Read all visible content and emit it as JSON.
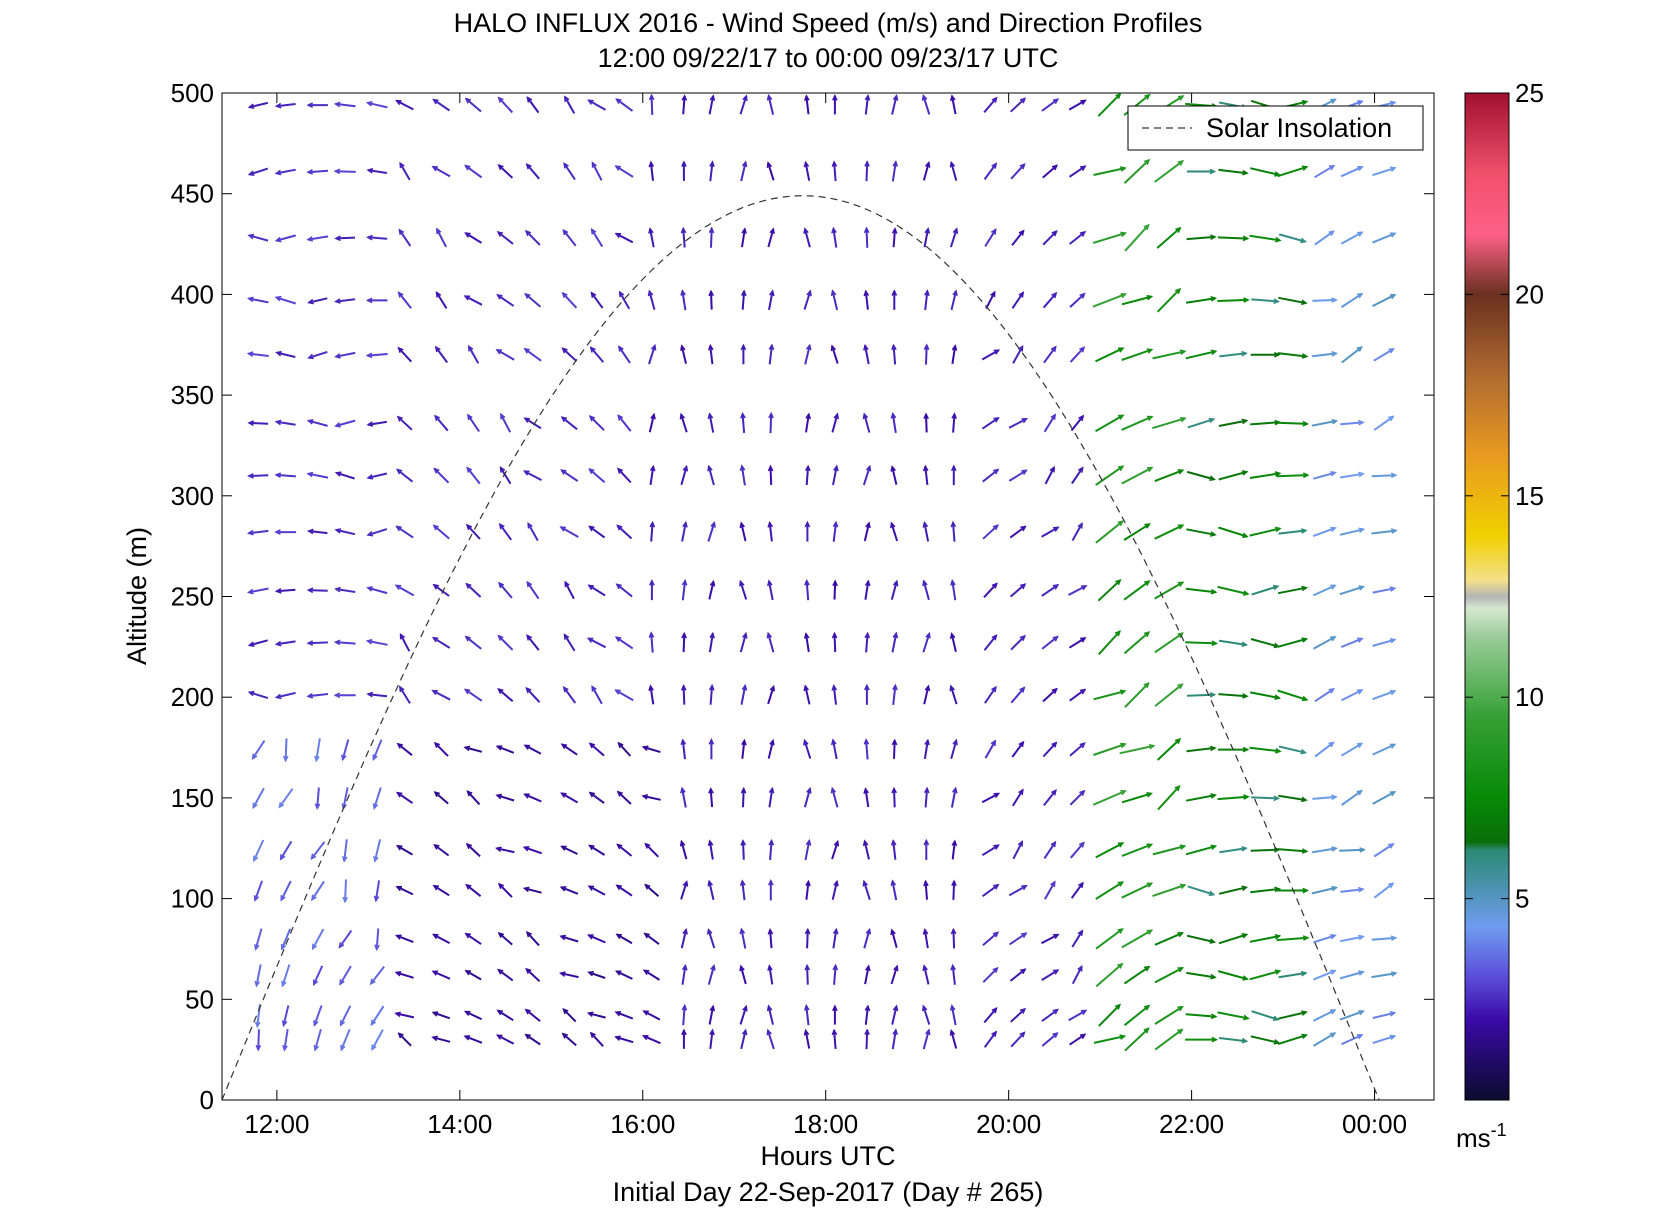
{
  "chart_data": {
    "type": "quiver",
    "title": "HALO INFLUX 2016 - Wind Speed (m/s) and Direction Profiles",
    "subtitle": "12:00 09/22/17 to 00:00 09/23/17  UTC",
    "xlabel": "Hours UTC",
    "xlabel2": "Initial Day 22-Sep-2017 (Day # 265)",
    "ylabel": "Altitude (m)",
    "xlim": [
      11.4,
      24.65
    ],
    "ylim": [
      0,
      500
    ],
    "x_tick_values": [
      12,
      14,
      16,
      18,
      20,
      22,
      24
    ],
    "x_tick_labels": [
      "12:00",
      "14:00",
      "16:00",
      "18:00",
      "20:00",
      "22:00",
      "00:00"
    ],
    "y_ticks": [
      0,
      50,
      100,
      150,
      200,
      250,
      300,
      350,
      400,
      450,
      500
    ],
    "colorbar": {
      "label": "ms",
      "label_exponent": "-1",
      "range": [
        0,
        25
      ],
      "ticks": [
        5,
        10,
        15,
        20,
        25
      ],
      "colormap": [
        {
          "v": 0,
          "c": "#0b0b2e"
        },
        {
          "v": 2,
          "c": "#3a0aa8"
        },
        {
          "v": 3,
          "c": "#5a4ad8"
        },
        {
          "v": 4.3,
          "c": "#6f9cf0"
        },
        {
          "v": 5.2,
          "c": "#4d93b5"
        },
        {
          "v": 6.2,
          "c": "#2c8a74"
        },
        {
          "v": 6.4,
          "c": "#0a6e0a"
        },
        {
          "v": 7.5,
          "c": "#078a07"
        },
        {
          "v": 9.5,
          "c": "#35a035"
        },
        {
          "v": 11.5,
          "c": "#9acc9a"
        },
        {
          "v": 12.2,
          "c": "#d6e8d0"
        },
        {
          "v": 12.5,
          "c": "#b4b4b4"
        },
        {
          "v": 12.9,
          "c": "#f4e08a"
        },
        {
          "v": 14,
          "c": "#f0d000"
        },
        {
          "v": 16,
          "c": "#e89a20"
        },
        {
          "v": 18,
          "c": "#b06a30"
        },
        {
          "v": 20,
          "c": "#6a3020"
        },
        {
          "v": 21.5,
          "c": "#ff6088"
        },
        {
          "v": 23,
          "c": "#f0506a"
        },
        {
          "v": 25,
          "c": "#a01030"
        }
      ]
    },
    "legend": {
      "entries": [
        "Solar Insolation"
      ],
      "placement": "top-right"
    },
    "solar_insolation": {
      "peak_hour": 17.75,
      "peak_value": 449,
      "rise_hour": 11.4,
      "set_hour": 24.05
    },
    "hours": [
      11.8,
      12.1,
      12.45,
      12.75,
      13.1,
      13.4,
      13.8,
      14.15,
      14.5,
      14.8,
      15.2,
      15.5,
      15.8,
      16.1,
      16.45,
      16.75,
      17.1,
      17.4,
      17.8,
      18.1,
      18.45,
      18.75,
      19.1,
      19.4,
      19.8,
      20.1,
      20.45,
      20.75,
      21.1,
      21.4,
      21.75,
      22.1,
      22.45,
      22.8,
      23.1,
      23.45,
      23.75,
      24.1
    ],
    "altitudes": [
      30,
      42,
      62,
      80,
      104,
      124,
      150,
      174,
      201,
      227,
      253,
      282,
      310,
      336,
      370,
      397,
      428,
      461,
      494
    ],
    "wind_field_note": "Direction (deg clockwise from north) and speed estimated per time/altitude; generated from region-wise estimates below",
    "wind_regions": [
      {
        "hours": [
          11.8,
          13.4
        ],
        "alt": [
          180,
          500
        ],
        "dir": 270,
        "speed": 2.6
      },
      {
        "hours": [
          13.4,
          16.1
        ],
        "alt": [
          180,
          500
        ],
        "dir": 315,
        "speed": 2.5
      },
      {
        "hours": [
          16.1,
          19.5
        ],
        "alt": [
          30,
          500
        ],
        "dir": 0,
        "speed": 2.3
      },
      {
        "hours": [
          19.5,
          21.1
        ],
        "alt": [
          30,
          500
        ],
        "dir": 45,
        "speed": 2.4
      },
      {
        "hours": [
          21.1,
          22.1
        ],
        "alt": [
          30,
          500
        ],
        "dir": 60,
        "speed": 8.5
      },
      {
        "hours": [
          22.1,
          23.45
        ],
        "alt": [
          30,
          500
        ],
        "dir": 90,
        "speed": 7.0
      },
      {
        "hours": [
          23.45,
          24.1
        ],
        "alt": [
          30,
          500
        ],
        "dir": 70,
        "speed": 4.5
      },
      {
        "hours": [
          11.8,
          13.4
        ],
        "alt": [
          30,
          180
        ],
        "dir": 200,
        "speed": 3.5
      },
      {
        "hours": [
          13.4,
          16.1
        ],
        "alt": [
          30,
          180
        ],
        "dir": 300,
        "speed": 1.8
      }
    ]
  }
}
